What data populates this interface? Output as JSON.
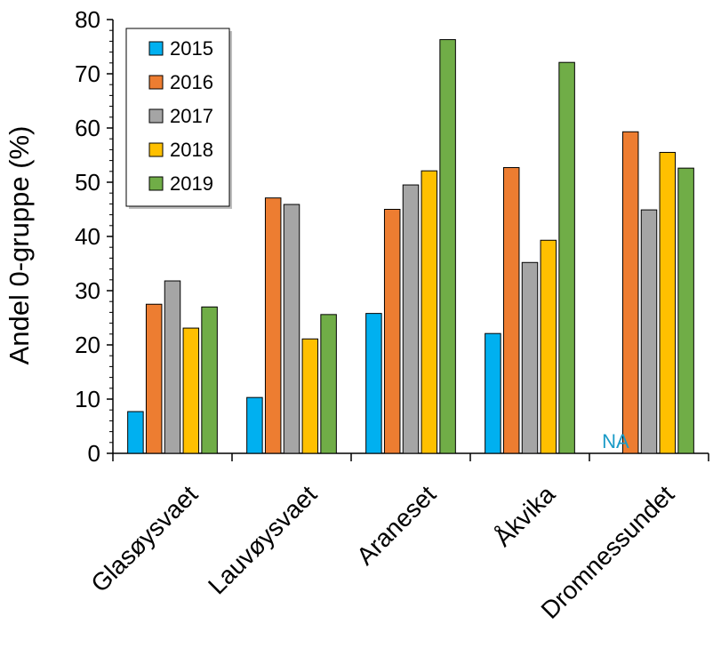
{
  "chart_data": {
    "type": "bar",
    "title": "",
    "xlabel": "",
    "ylabel": "Andel 0-gruppe (%)",
    "ylim": [
      0,
      80
    ],
    "yticks": [
      0,
      10,
      20,
      30,
      40,
      50,
      60,
      70,
      80
    ],
    "grid": false,
    "legend_position": "top-left",
    "categories": [
      "Glasøysvaet",
      "Lauvøysvaet",
      "Araneset",
      "Åkvika",
      "Dromnessundet"
    ],
    "series": [
      {
        "name": "2015",
        "color": "#00B0F0",
        "values": [
          7.7,
          10.3,
          25.8,
          22.1,
          null
        ]
      },
      {
        "name": "2016",
        "color": "#ED7D31",
        "values": [
          27.5,
          47.1,
          45.0,
          52.7,
          59.3
        ]
      },
      {
        "name": "2017",
        "color": "#A5A5A5",
        "values": [
          31.8,
          45.9,
          49.5,
          35.2,
          44.9
        ]
      },
      {
        "name": "2018",
        "color": "#FFC000",
        "values": [
          23.1,
          21.1,
          52.1,
          39.3,
          55.5
        ]
      },
      {
        "name": "2019",
        "color": "#70AD47",
        "values": [
          27.0,
          25.6,
          76.3,
          72.1,
          52.6
        ]
      }
    ],
    "annotations": [
      {
        "text": "NA",
        "category": "Dromnessundet",
        "series": "2015",
        "color": "#1B9BC7"
      }
    ]
  }
}
